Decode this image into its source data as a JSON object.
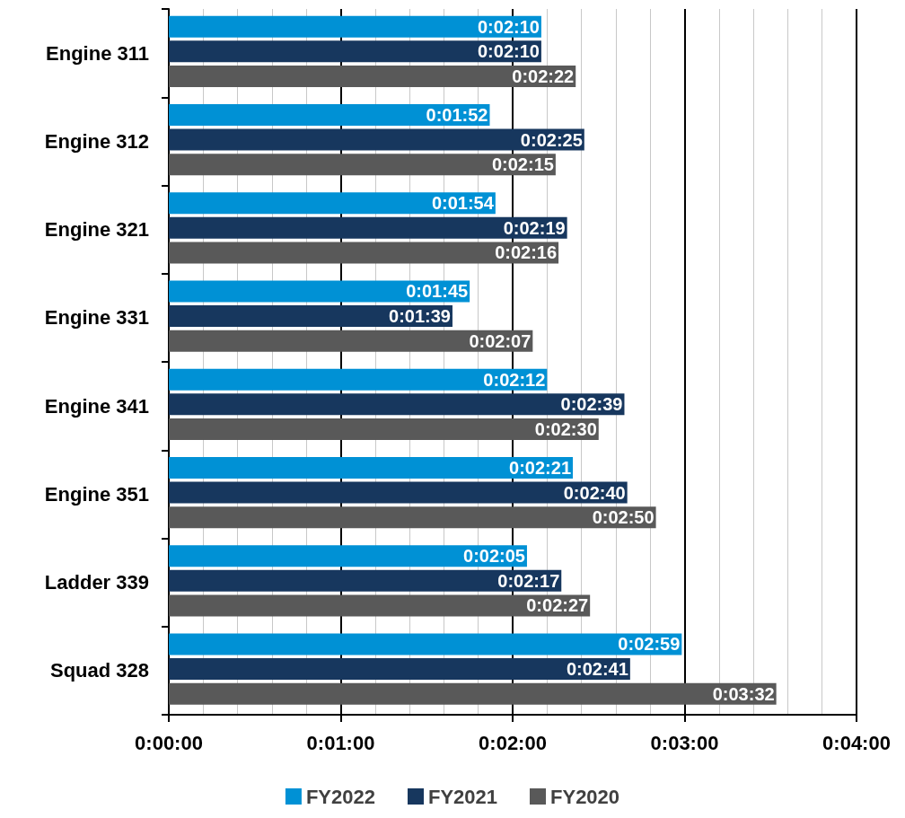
{
  "chart_data": {
    "type": "bar",
    "orientation": "horizontal",
    "categories": [
      "Engine 311",
      "Engine 312",
      "Engine 321",
      "Engine 331",
      "Engine 341",
      "Engine 351",
      "Ladder 339",
      "Squad 328"
    ],
    "series": [
      {
        "name": "FY2022",
        "color": "#0091d5",
        "values": [
          130,
          112,
          114,
          105,
          132,
          141,
          125,
          179
        ],
        "value_labels": [
          "0:02:10",
          "0:01:52",
          "0:01:54",
          "0:01:45",
          "0:02:12",
          "0:02:21",
          "0:02:05",
          "0:02:59"
        ]
      },
      {
        "name": "FY2021",
        "color": "#17375e",
        "values": [
          130,
          145,
          139,
          99,
          159,
          160,
          137,
          161
        ],
        "value_labels": [
          "0:02:10",
          "0:02:25",
          "0:02:19",
          "0:01:39",
          "0:02:39",
          "0:02:40",
          "0:02:17",
          "0:02:41"
        ]
      },
      {
        "name": "FY2020",
        "color": "#595959",
        "values": [
          142,
          135,
          136,
          127,
          150,
          170,
          147,
          212
        ],
        "value_labels": [
          "0:02:22",
          "0:02:15",
          "0:02:16",
          "0:02:07",
          "0:02:30",
          "0:02:50",
          "0:02:27",
          "0:03:32"
        ]
      }
    ],
    "xlim": [
      0,
      240
    ],
    "xticks": [
      {
        "value": 0,
        "label": "0:00:00"
      },
      {
        "value": 12,
        "label": null
      },
      {
        "value": 24,
        "label": null
      },
      {
        "value": 36,
        "label": null
      },
      {
        "value": 48,
        "label": null
      },
      {
        "value": 60,
        "label": "0:01:00"
      },
      {
        "value": 72,
        "label": null
      },
      {
        "value": 84,
        "label": null
      },
      {
        "value": 96,
        "label": null
      },
      {
        "value": 108,
        "label": null
      },
      {
        "value": 120,
        "label": "0:02:00"
      },
      {
        "value": 132,
        "label": null
      },
      {
        "value": 144,
        "label": null
      },
      {
        "value": 156,
        "label": null
      },
      {
        "value": 168,
        "label": null
      },
      {
        "value": 180,
        "label": "0:03:00"
      },
      {
        "value": 192,
        "label": null
      },
      {
        "value": 204,
        "label": null
      },
      {
        "value": 216,
        "label": null
      },
      {
        "value": 228,
        "label": null
      },
      {
        "value": 240,
        "label": "0:04:00"
      }
    ],
    "grid": "x",
    "legend": "bottom"
  }
}
